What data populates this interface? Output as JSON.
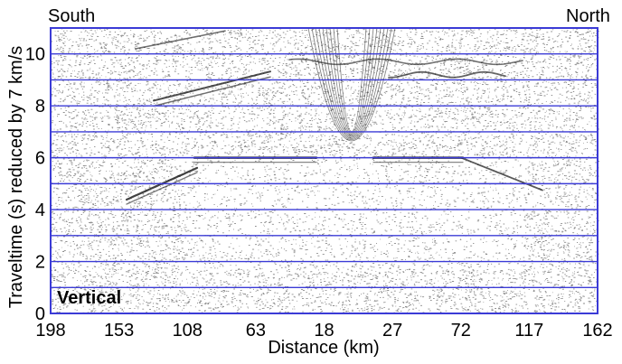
{
  "chart_data": {
    "type": "seismic-record-section",
    "component": "Vertical",
    "direction_left": "South",
    "direction_right": "North",
    "xlabel": "Distance (km)",
    "ylabel": "Traveltime (s) reduced by 7 km/s",
    "x_ticks": [
      "198",
      "153",
      "108",
      "63",
      "18",
      "27",
      "72",
      "117",
      "162"
    ],
    "ylim": [
      0,
      11
    ],
    "y_ticks": [
      0,
      2,
      4,
      6,
      8,
      10
    ],
    "grid_y": [
      1,
      2,
      3,
      4,
      5,
      6,
      7,
      8,
      9,
      10
    ],
    "grid": true,
    "colors": {
      "grid": "#3b3bd6",
      "frame": "#3b3bd6",
      "noise": "#303030",
      "arrival": "#111111"
    }
  }
}
